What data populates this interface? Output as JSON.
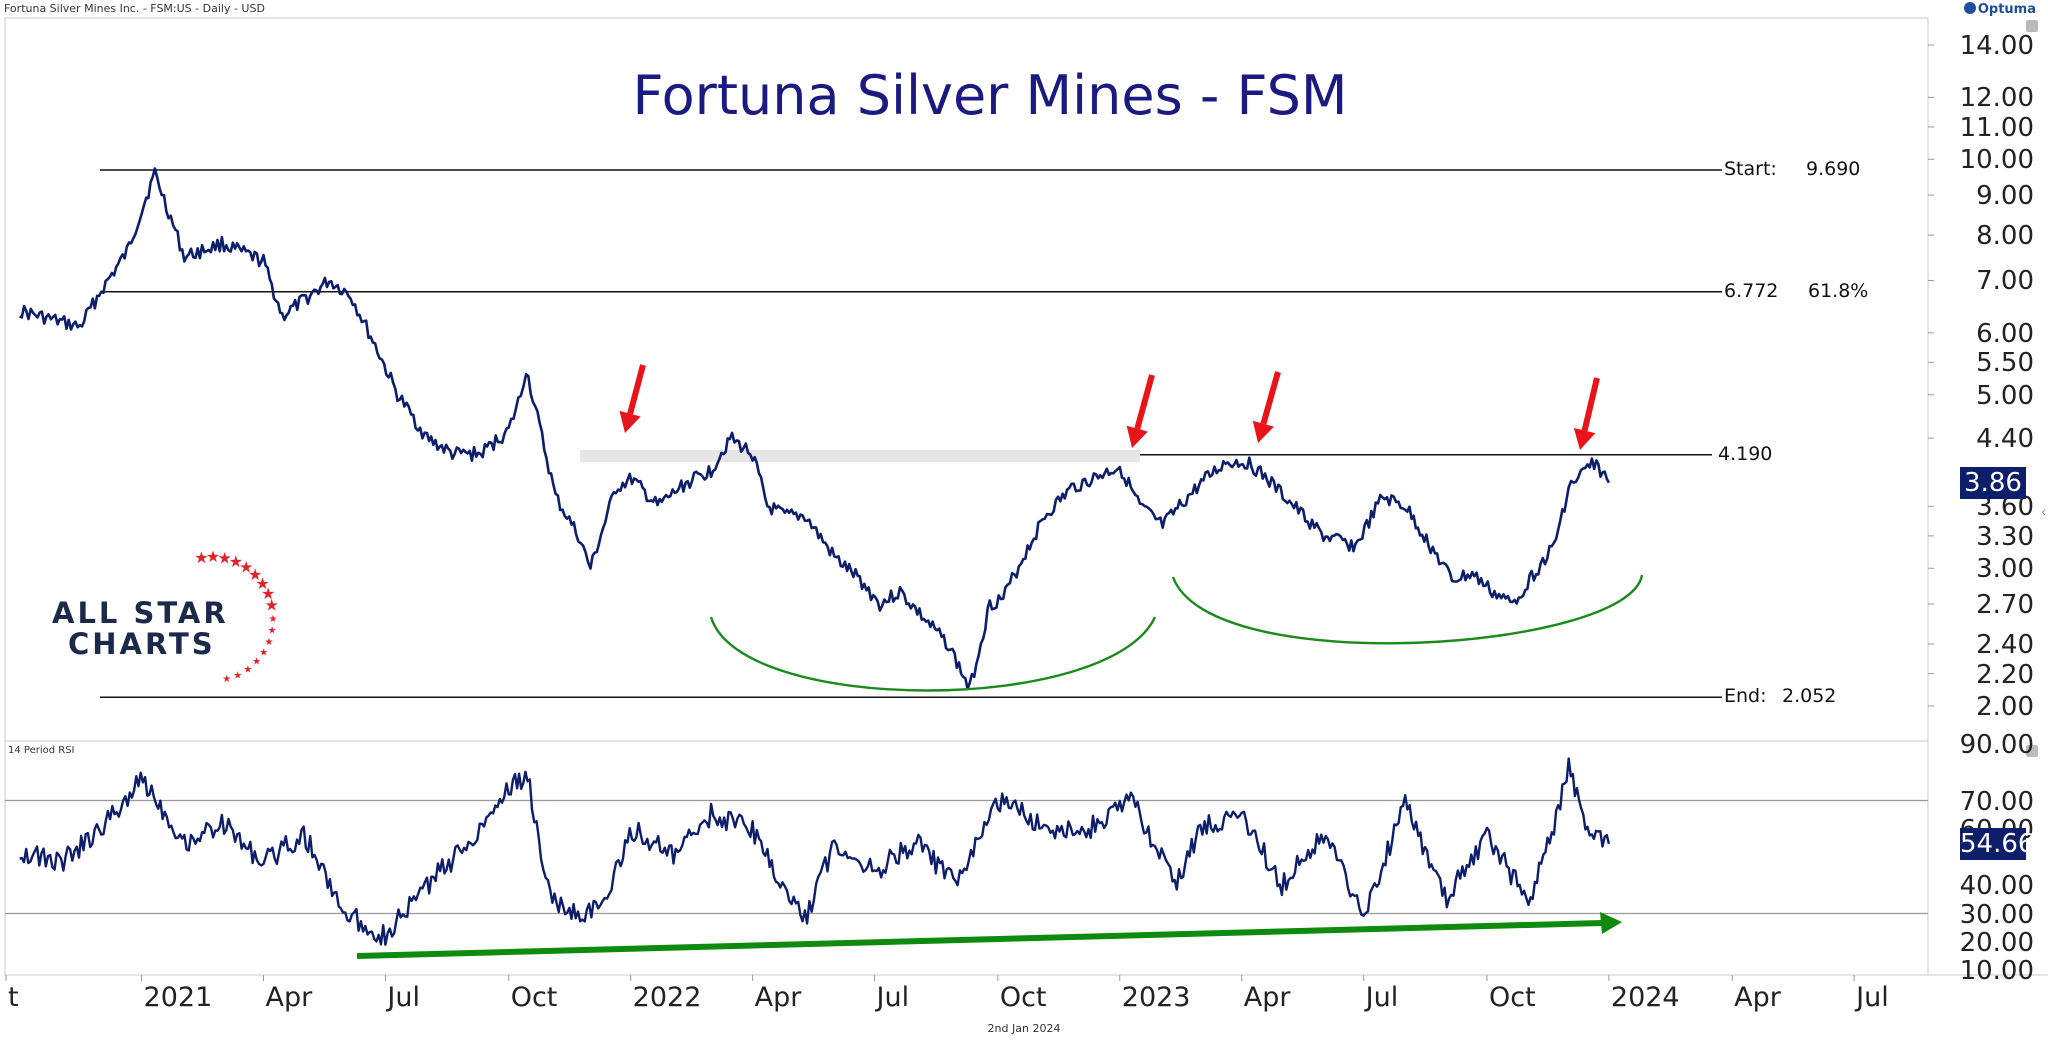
{
  "header": {
    "instrument": "Fortuna Silver Mines Inc. - FSM:US - Daily - USD",
    "brand": "Optuma",
    "footer_date": "2nd Jan 2024"
  },
  "chart_data": [
    {
      "type": "line",
      "title": "Fortuna Silver Mines - FSM",
      "y_scale": "log",
      "y_ticks": [
        "14.00",
        "12.00",
        "11.00",
        "10.00",
        "9.00",
        "8.00",
        "7.00",
        "6.00",
        "5.50",
        "5.00",
        "4.40",
        "3.60",
        "3.30",
        "3.00",
        "2.70",
        "2.40",
        "2.20",
        "2.00"
      ],
      "x_ticks": [
        "t",
        "2021",
        "Apr",
        "Jul",
        "Oct",
        "2022",
        "Apr",
        "Jul",
        "Oct",
        "2023",
        "Apr",
        "Jul",
        "Oct",
        "2024",
        "Apr",
        "Jul"
      ],
      "last_value": "3.86",
      "series": [
        {
          "x": [
            "2020-10-01",
            "2020-11-15",
            "2020-12-01",
            "2020-12-20",
            "2021-01-10",
            "2021-02-01",
            "2021-03-01",
            "2021-04-01",
            "2021-04-15",
            "2021-05-01",
            "2021-05-20",
            "2021-06-05",
            "2021-06-25",
            "2021-07-10",
            "2021-08-01",
            "2021-08-20",
            "2021-09-10",
            "2021-10-01",
            "2021-10-10",
            "2021-10-14",
            "2021-11-05",
            "2021-11-22",
            "2021-12-01",
            "2021-12-20",
            "2022-01-01",
            "2022-01-20",
            "2022-02-10",
            "2022-03-01",
            "2022-03-15",
            "2022-04-01",
            "2022-04-12",
            "2022-04-25",
            "2022-05-10",
            "2022-06-01",
            "2022-06-20",
            "2022-07-05",
            "2022-07-20",
            "2022-08-10",
            "2022-08-25",
            "2022-09-10",
            "2022-09-25",
            "2022-10-05",
            "2022-10-20",
            "2022-11-05",
            "2022-11-25",
            "2022-12-10",
            "2022-12-31",
            "2023-01-15",
            "2023-02-01",
            "2023-02-20",
            "2023-03-05",
            "2023-03-20",
            "2023-04-05",
            "2023-04-20",
            "2023-05-10",
            "2023-06-01",
            "2023-06-25",
            "2023-07-15",
            "2023-08-01",
            "2023-08-20",
            "2023-09-05",
            "2023-09-20",
            "2023-10-05",
            "2023-10-20",
            "2023-11-05",
            "2023-11-20",
            "2023-12-01",
            "2023-12-10",
            "2023-12-20",
            "2023-12-31"
          ],
          "values": [
            6.4,
            6.1,
            6.8,
            7.6,
            9.6,
            7.5,
            7.8,
            7.4,
            6.3,
            6.6,
            7.0,
            6.7,
            5.7,
            5.0,
            4.4,
            4.2,
            4.2,
            4.5,
            5.0,
            5.4,
            3.7,
            3.3,
            3.0,
            3.8,
            3.9,
            3.6,
            3.85,
            4.0,
            4.4,
            4.2,
            3.6,
            3.5,
            3.5,
            3.1,
            2.9,
            2.7,
            2.8,
            2.55,
            2.4,
            2.1,
            2.7,
            2.75,
            3.1,
            3.5,
            3.8,
            3.9,
            4.05,
            3.6,
            3.4,
            3.7,
            3.9,
            4.1,
            4.1,
            3.9,
            3.6,
            3.3,
            3.2,
            3.7,
            3.6,
            3.2,
            2.9,
            2.95,
            2.8,
            2.7,
            2.95,
            3.2,
            3.8,
            3.95,
            4.1,
            3.86
          ]
        }
      ],
      "fib_levels": [
        {
          "label": "Start:",
          "value": "9.690"
        },
        {
          "label": "6.772",
          "value": "61.8%"
        },
        {
          "label": "",
          "value": "4.190"
        },
        {
          "label": "End:",
          "value": "2.052"
        }
      ]
    },
    {
      "type": "line",
      "title": "14 Period RSI",
      "y_ticks": [
        "90.00",
        "70.00",
        "60.00",
        "40.00",
        "30.00",
        "20.00",
        "10.00"
      ],
      "last_value": "54.66",
      "reference_lines": [
        70,
        30
      ],
      "series": [
        {
          "x": [
            "2020-10-01",
            "2020-11-01",
            "2020-12-01",
            "2021-01-01",
            "2021-02-01",
            "2021-03-01",
            "2021-04-01",
            "2021-05-01",
            "2021-06-01",
            "2021-07-01",
            "2021-08-01",
            "2021-09-01",
            "2021-10-01",
            "2021-10-15",
            "2021-11-01",
            "2021-11-20",
            "2021-12-10",
            "2022-01-01",
            "2022-02-01",
            "2022-03-01",
            "2022-04-01",
            "2022-04-20",
            "2022-05-10",
            "2022-06-01",
            "2022-07-01",
            "2022-08-01",
            "2022-09-01",
            "2022-10-01",
            "2022-11-01",
            "2022-12-01",
            "2023-01-10",
            "2023-02-10",
            "2023-03-01",
            "2023-04-01",
            "2023-05-01",
            "2023-06-01",
            "2023-07-01",
            "2023-08-01",
            "2023-09-01",
            "2023-10-01",
            "2023-11-01",
            "2023-11-20",
            "2023-12-01",
            "2023-12-15",
            "2023-12-31"
          ],
          "values": [
            52,
            48,
            60,
            78,
            55,
            62,
            48,
            58,
            30,
            22,
            40,
            55,
            75,
            78,
            35,
            30,
            32,
            60,
            50,
            65,
            60,
            42,
            28,
            55,
            45,
            55,
            40,
            70,
            62,
            58,
            70,
            40,
            60,
            65,
            40,
            58,
            30,
            68,
            35,
            58,
            34,
            60,
            84,
            58,
            54.66
          ]
        }
      ]
    }
  ],
  "annotations": {
    "logo_line1": "ALL STAR",
    "logo_line2": "CHARTS"
  },
  "colors": {
    "price": "#0d1e6b",
    "title": "#1a1a80",
    "arrow_red": "#e8141a",
    "arc_green": "#1a8a1a",
    "trend_green": "#0e8a0e",
    "badge": "#0d1e6b"
  }
}
